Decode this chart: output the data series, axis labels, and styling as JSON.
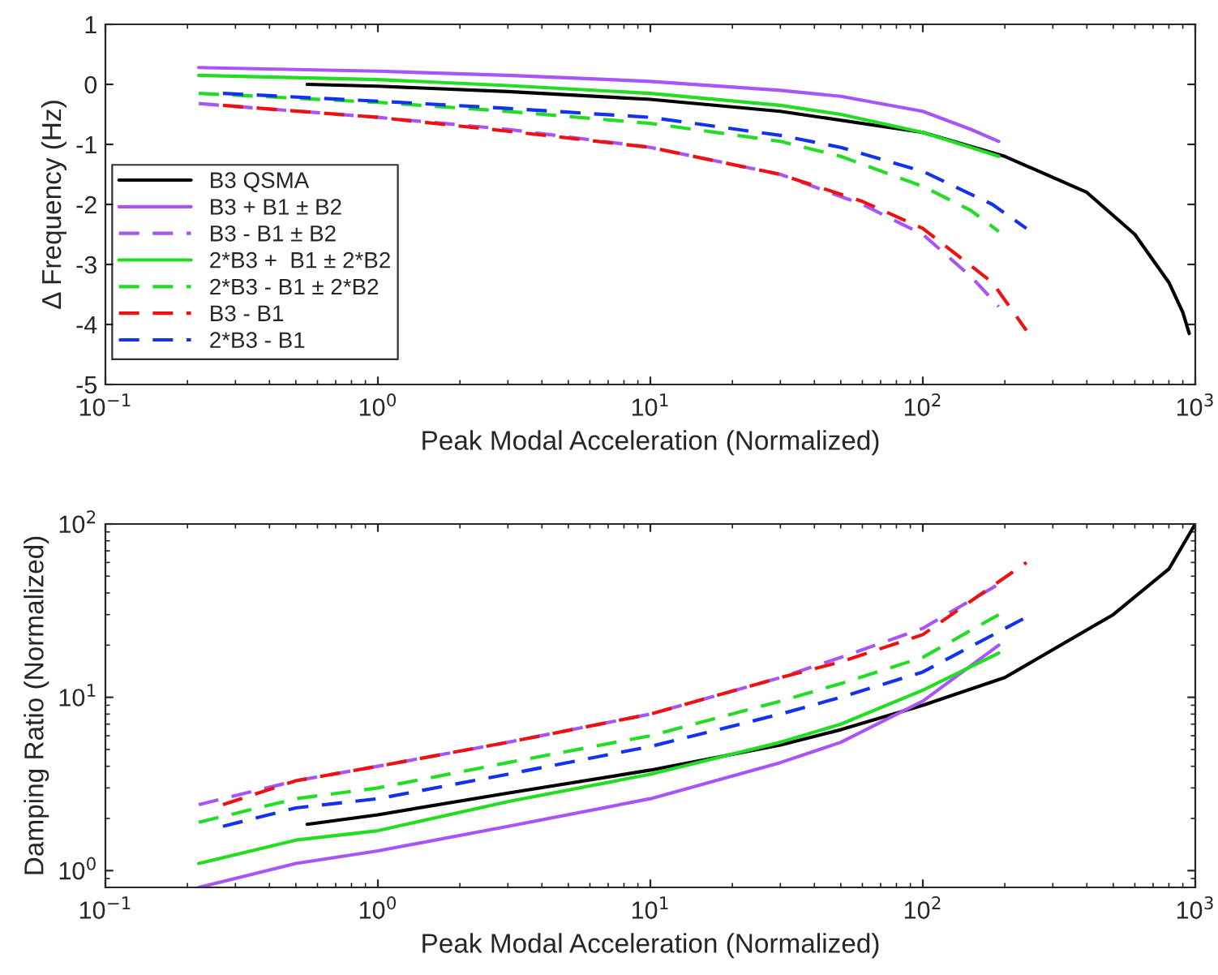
{
  "chart_data": [
    {
      "type": "line",
      "xlabel": "Peak Modal Acceleration (Normalized)",
      "ylabel": "Δ Frequency (Hz)",
      "log": "x",
      "grid": false,
      "legend": "left",
      "xlim": [
        0.1,
        1000
      ],
      "xticks": [
        {
          "value": 0.1,
          "label": "10$^{−1}$"
        },
        {
          "value": 1,
          "label": "10$^{0}$"
        },
        {
          "value": 10,
          "label": "10$^{1}$"
        },
        {
          "value": 100,
          "label": "10$^{2}$"
        },
        {
          "value": 1000,
          "label": "10$^{3}$"
        }
      ],
      "ylim": [
        -5,
        1
      ],
      "yticks": [
        -5,
        -4,
        -3,
        -2,
        -1,
        0,
        1
      ],
      "series": [
        {
          "name": "B3 QSMA",
          "color": "#000000",
          "line_style": "solid",
          "x": [
            0.55,
            1,
            3,
            10,
            30,
            100,
            200,
            400,
            600,
            800,
            900,
            950
          ],
          "values": [
            0,
            -0.03,
            -0.12,
            -0.25,
            -0.45,
            -0.8,
            -1.2,
            -1.8,
            -2.5,
            -3.3,
            -3.8,
            -4.15
          ]
        },
        {
          "name": "B3 + B1 ± B2",
          "color": "#a855f7",
          "line_style": "solid",
          "x": [
            0.22,
            1,
            3,
            10,
            30,
            50,
            100,
            150,
            190
          ],
          "values": [
            0.28,
            0.22,
            0.15,
            0.05,
            -0.1,
            -0.2,
            -0.45,
            -0.75,
            -0.95
          ]
        },
        {
          "name": "B3 - B1 ± B2",
          "color": "#a855f7",
          "line_style": "dashed",
          "x": [
            0.22,
            1,
            3,
            10,
            30,
            60,
            100,
            150,
            190
          ],
          "values": [
            -0.32,
            -0.55,
            -0.75,
            -1.05,
            -1.5,
            -2.0,
            -2.5,
            -3.2,
            -3.7
          ]
        },
        {
          "name": "2*B3 +  B1 ± 2*B2",
          "color": "#22dd22",
          "line_style": "solid",
          "x": [
            0.22,
            1,
            3,
            10,
            30,
            50,
            100,
            150,
            190
          ],
          "values": [
            0.15,
            0.08,
            -0.02,
            -0.15,
            -0.35,
            -0.5,
            -0.8,
            -1.05,
            -1.2
          ]
        },
        {
          "name": "2*B3 - B1 ± 2*B2",
          "color": "#22dd22",
          "line_style": "dashed",
          "x": [
            0.22,
            1,
            3,
            10,
            30,
            50,
            100,
            150,
            190
          ],
          "values": [
            -0.15,
            -0.3,
            -0.45,
            -0.65,
            -0.95,
            -1.2,
            -1.7,
            -2.1,
            -2.45
          ]
        },
        {
          "name": "B3 - B1",
          "color": "#ee1111",
          "line_style": "dashed",
          "x": [
            0.27,
            1,
            3,
            10,
            30,
            60,
            100,
            180,
            240
          ],
          "values": [
            -0.35,
            -0.55,
            -0.78,
            -1.05,
            -1.5,
            -1.95,
            -2.4,
            -3.3,
            -4.1
          ]
        },
        {
          "name": "2*B3 - B1",
          "color": "#1133ee",
          "line_style": "dashed",
          "x": [
            0.27,
            1,
            3,
            10,
            30,
            50,
            100,
            180,
            240
          ],
          "values": [
            -0.15,
            -0.28,
            -0.4,
            -0.55,
            -0.85,
            -1.05,
            -1.45,
            -2.0,
            -2.4
          ]
        }
      ]
    },
    {
      "type": "line",
      "xlabel": "Peak Modal Acceleration (Normalized)",
      "ylabel": "Damping Ratio (Normalized)",
      "log": "xy",
      "grid": false,
      "legend": false,
      "xlim": [
        0.1,
        1000
      ],
      "xticks": [
        {
          "value": 0.1,
          "label": "10$^{−1}$"
        },
        {
          "value": 1,
          "label": "10$^{0}$"
        },
        {
          "value": 10,
          "label": "10$^{1}$"
        },
        {
          "value": 100,
          "label": "10$^{2}$"
        },
        {
          "value": 1000,
          "label": "10$^{3}$"
        }
      ],
      "ylim": [
        0.8,
        100
      ],
      "yticks": [
        {
          "value": 1,
          "label": "10$^{0}$"
        },
        {
          "value": 10,
          "label": "10$^{1}$"
        },
        {
          "value": 100,
          "label": "10$^{2}$"
        }
      ],
      "series": [
        {
          "color": "#000000",
          "line_style": "solid",
          "x": [
            0.55,
            1,
            3,
            10,
            30,
            50,
            100,
            200,
            500,
            800,
            1000
          ],
          "values": [
            1.85,
            2.1,
            2.8,
            3.8,
            5.3,
            6.5,
            9,
            13,
            30,
            55,
            100
          ]
        },
        {
          "color": "#a855f7",
          "line_style": "solid",
          "x": [
            0.22,
            0.5,
            1,
            3,
            10,
            30,
            50,
            100,
            190
          ],
          "values": [
            0.8,
            1.1,
            1.3,
            1.8,
            2.6,
            4.2,
            5.5,
            9.5,
            20
          ]
        },
        {
          "color": "#a855f7",
          "line_style": "dashed",
          "x": [
            0.22,
            0.5,
            1,
            3,
            10,
            30,
            50,
            100,
            190
          ],
          "values": [
            2.4,
            3.3,
            4,
            5.5,
            8,
            13,
            17,
            25,
            45
          ]
        },
        {
          "color": "#22dd22",
          "line_style": "solid",
          "x": [
            0.22,
            0.5,
            1,
            3,
            10,
            30,
            50,
            100,
            190
          ],
          "values": [
            1.1,
            1.5,
            1.7,
            2.5,
            3.6,
            5.5,
            7,
            11,
            18
          ]
        },
        {
          "color": "#22dd22",
          "line_style": "dashed",
          "x": [
            0.22,
            0.5,
            1,
            3,
            10,
            30,
            50,
            100,
            190
          ],
          "values": [
            1.9,
            2.6,
            3,
            4.2,
            6,
            9.5,
            12,
            17,
            30
          ]
        },
        {
          "color": "#ee1111",
          "line_style": "dashed",
          "x": [
            0.27,
            0.5,
            1,
            3,
            10,
            30,
            50,
            100,
            240
          ],
          "values": [
            2.4,
            3.3,
            4,
            5.5,
            8,
            13,
            16,
            23,
            60
          ]
        },
        {
          "color": "#1133ee",
          "line_style": "dashed",
          "x": [
            0.27,
            0.5,
            1,
            3,
            10,
            30,
            50,
            100,
            240
          ],
          "values": [
            1.8,
            2.3,
            2.6,
            3.6,
            5.2,
            8,
            10,
            14,
            29
          ]
        }
      ]
    }
  ]
}
